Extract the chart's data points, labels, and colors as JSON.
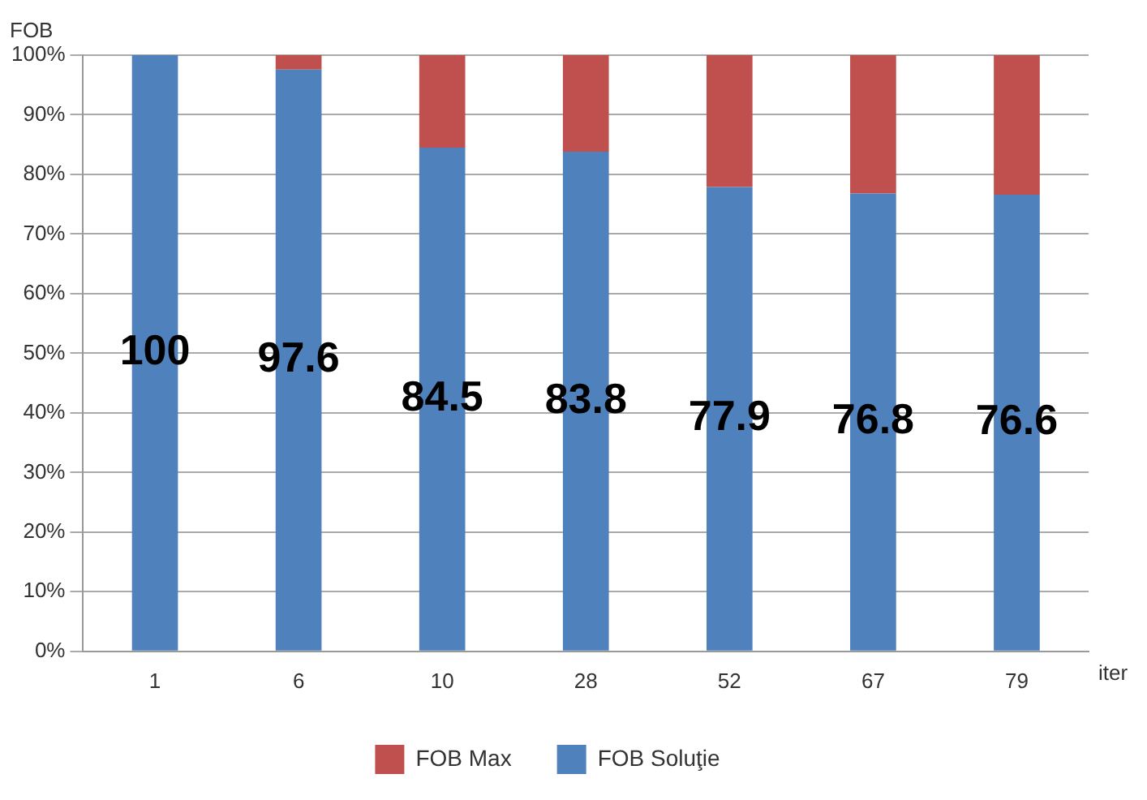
{
  "chart_data": {
    "type": "bar",
    "stacked": true,
    "ylabel": "FOB",
    "xlabel": "iter",
    "categories": [
      "1",
      "6",
      "10",
      "28",
      "52",
      "67",
      "79"
    ],
    "series": [
      {
        "name": "FOB Soluţie",
        "color": "#4f81bd",
        "values": [
          100,
          97.6,
          84.5,
          83.8,
          77.9,
          76.8,
          76.6
        ],
        "value_labels": [
          "100",
          "97.6",
          "84.5",
          "83.8",
          "77.9",
          "76.8",
          "76.6"
        ]
      },
      {
        "name": "FOB Max",
        "color": "#c0504d",
        "values": [
          0,
          2.4,
          15.5,
          16.2,
          22.1,
          23.2,
          23.4
        ]
      }
    ],
    "ylim": [
      0,
      100
    ],
    "yticks": [
      {
        "value": 0,
        "label": "0%"
      },
      {
        "value": 10,
        "label": "10%"
      },
      {
        "value": 20,
        "label": "20%"
      },
      {
        "value": 30,
        "label": "30%"
      },
      {
        "value": 40,
        "label": "40%"
      },
      {
        "value": 50,
        "label": "50%"
      },
      {
        "value": 60,
        "label": "60%"
      },
      {
        "value": 70,
        "label": "70%"
      },
      {
        "value": 80,
        "label": "80%"
      },
      {
        "value": 90,
        "label": "90%"
      },
      {
        "value": 100,
        "label": "100%"
      }
    ],
    "grid": "y",
    "legend": "bottom"
  }
}
